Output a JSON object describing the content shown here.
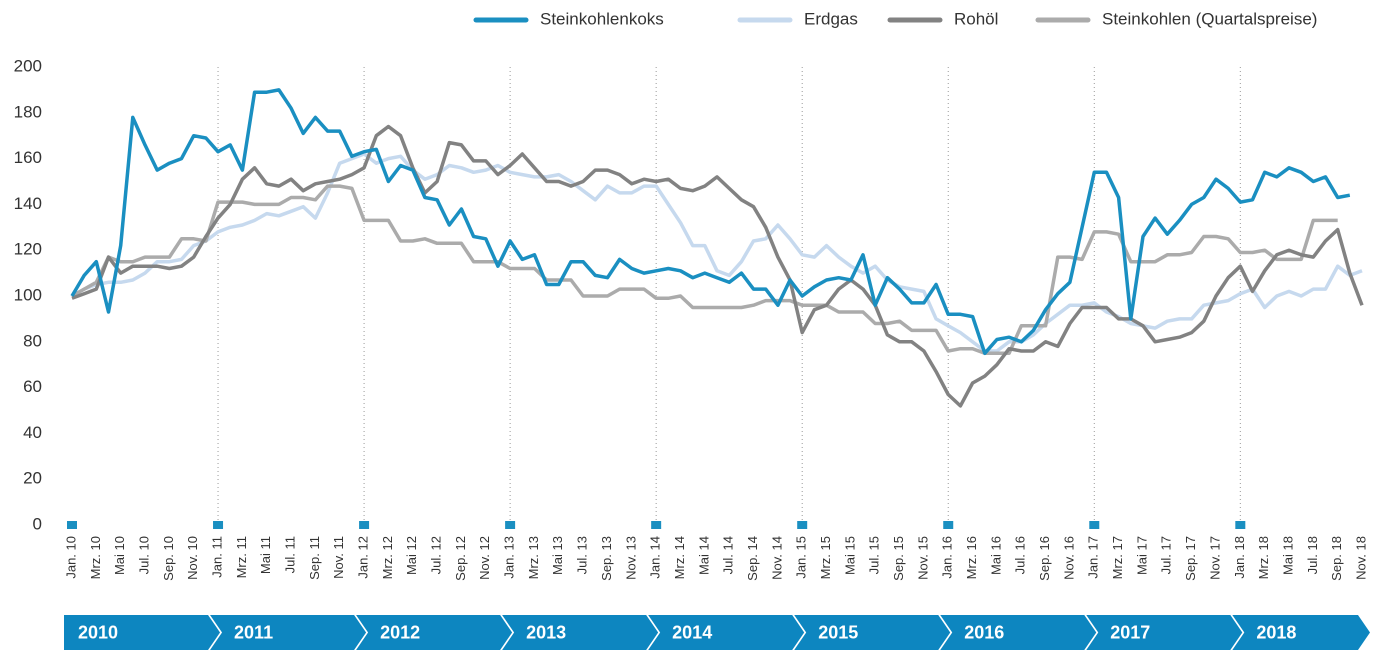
{
  "chart_data": {
    "type": "line",
    "categories": [
      "Jan. 10",
      null,
      "Mrz. 10",
      null,
      "Mai 10",
      null,
      "Jul. 10",
      null,
      "Sep. 10",
      null,
      "Nov. 10",
      null,
      "Jan. 11",
      null,
      "Mrz. 11",
      null,
      "Mai 11",
      null,
      "Jul. 11",
      null,
      "Sep. 11",
      null,
      "Nov. 11",
      null,
      "Jan. 12",
      null,
      "Mrz. 12",
      null,
      "Mai 12",
      null,
      "Jul. 12",
      null,
      "Sep. 12",
      null,
      "Nov. 12",
      null,
      "Jan. 13",
      null,
      "Mrz. 13",
      null,
      "Mai 13",
      null,
      "Jul. 13",
      null,
      "Sep. 13",
      null,
      "Nov. 13",
      null,
      "Jan. 14",
      null,
      "Mrz. 14",
      null,
      "Mai 14",
      null,
      "Jul. 14",
      null,
      "Sep. 14",
      null,
      "Nov. 14",
      null,
      "Jan. 15",
      null,
      "Mrz. 15",
      null,
      "Mai 15",
      null,
      "Jul. 15",
      null,
      "Sep. 15",
      null,
      "Nov. 15",
      null,
      "Jan. 16",
      null,
      "Mrz. 16",
      null,
      "Mai 16",
      null,
      "Jul. 16",
      null,
      "Sep. 16",
      null,
      "Nov. 16",
      null,
      "Jan. 17",
      null,
      "Mrz. 17",
      null,
      "Mai 17",
      null,
      "Jul. 17",
      null,
      "Sep. 17",
      null,
      "Nov. 17",
      null,
      "Jan. 18",
      null,
      "Mrz. 18",
      null,
      "Mai 18",
      null,
      "Jul. 18",
      null,
      "Sep. 18",
      null,
      "Nov. 18"
    ],
    "series": [
      {
        "name": "Steinkohlenkoks",
        "color": "#1a8fc1",
        "values": [
          100,
          109,
          115,
          93,
          122,
          178,
          166,
          155,
          158,
          160,
          170,
          169,
          163,
          166,
          155,
          189,
          189,
          190,
          182,
          171,
          178,
          172,
          172,
          161,
          163,
          164,
          150,
          157,
          155,
          143,
          142,
          131,
          138,
          126,
          125,
          113,
          124,
          116,
          118,
          105,
          105,
          115,
          115,
          109,
          108,
          116,
          112,
          110,
          111,
          112,
          111,
          108,
          110,
          108,
          106,
          110,
          103,
          103,
          96,
          107,
          100,
          104,
          107,
          108,
          107,
          118,
          96,
          108,
          103,
          97,
          97,
          105,
          92,
          92,
          91,
          75,
          81,
          82,
          80,
          85,
          94,
          101,
          106,
          130,
          154,
          154,
          143,
          90,
          126,
          134,
          127,
          133,
          140,
          143,
          151,
          147,
          141,
          142,
          154,
          152,
          156,
          154,
          150,
          152,
          143,
          144,
          null
        ]
      },
      {
        "name": "Erdgas",
        "color": "#c6d9ee",
        "values": [
          100,
          103,
          105,
          106,
          106,
          107,
          110,
          115,
          115,
          116,
          122,
          124,
          128,
          130,
          131,
          133,
          136,
          135,
          137,
          139,
          134,
          145,
          158,
          160,
          162,
          158,
          160,
          161,
          155,
          151,
          153,
          157,
          156,
          154,
          155,
          157,
          154,
          153,
          152,
          152,
          153,
          150,
          146,
          142,
          148,
          145,
          145,
          148,
          148,
          140,
          132,
          122,
          122,
          111,
          109,
          115,
          124,
          125,
          131,
          125,
          118,
          117,
          122,
          117,
          113,
          110,
          113,
          107,
          104,
          103,
          102,
          90,
          87,
          84,
          80,
          76,
          76,
          80,
          80,
          83,
          88,
          92,
          96,
          96,
          97,
          93,
          91,
          88,
          87,
          86,
          89,
          90,
          90,
          96,
          97,
          98,
          101,
          103,
          95,
          100,
          102,
          100,
          103,
          103,
          113,
          109,
          111
        ]
      },
      {
        "name": "Rohöl",
        "color": "#828282",
        "values": [
          99,
          101,
          103,
          117,
          110,
          113,
          113,
          113,
          112,
          113,
          117,
          126,
          134,
          140,
          151,
          156,
          149,
          148,
          151,
          146,
          149,
          150,
          151,
          153,
          156,
          170,
          174,
          170,
          156,
          145,
          150,
          167,
          166,
          159,
          159,
          153,
          157,
          162,
          156,
          150,
          150,
          148,
          150,
          155,
          155,
          153,
          149,
          151,
          150,
          151,
          147,
          146,
          148,
          152,
          147,
          142,
          139,
          130,
          117,
          107,
          84,
          94,
          96,
          103,
          107,
          103,
          96,
          83,
          80,
          80,
          76,
          67,
          57,
          52,
          62,
          65,
          70,
          77,
          76,
          76,
          80,
          78,
          88,
          95,
          95,
          95,
          90,
          90,
          87,
          80,
          81,
          82,
          84,
          89,
          100,
          108,
          113,
          102,
          111,
          118,
          120,
          118,
          117,
          124,
          129,
          110,
          96
        ]
      },
      {
        "name": "Steinkohlen (Quartalspreise)",
        "color": "#ababab",
        "values": [
          100,
          103,
          106,
          117,
          115,
          115,
          117,
          117,
          117,
          125,
          125,
          124,
          141,
          141,
          141,
          140,
          140,
          140,
          143,
          143,
          142,
          148,
          148,
          147,
          133,
          133,
          133,
          124,
          124,
          125,
          123,
          123,
          123,
          115,
          115,
          115,
          112,
          112,
          112,
          107,
          107,
          107,
          100,
          100,
          100,
          103,
          103,
          103,
          99,
          99,
          100,
          95,
          95,
          95,
          95,
          95,
          96,
          98,
          98,
          98,
          96,
          96,
          96,
          93,
          93,
          93,
          88,
          88,
          89,
          85,
          85,
          85,
          76,
          77,
          77,
          75,
          75,
          75,
          87,
          87,
          87,
          117,
          117,
          116,
          128,
          128,
          127,
          115,
          115,
          115,
          118,
          118,
          119,
          126,
          126,
          125,
          119,
          119,
          120,
          116,
          116,
          116,
          133,
          133,
          133,
          null,
          null
        ]
      }
    ],
    "ylim": [
      0,
      200
    ],
    "yticks": [
      0,
      20,
      40,
      60,
      80,
      100,
      120,
      140,
      160,
      180,
      200
    ],
    "years": [
      "2010",
      "2011",
      "2012",
      "2013",
      "2014",
      "2015",
      "2016",
      "2017",
      "2018"
    ],
    "legend": "top-right"
  }
}
